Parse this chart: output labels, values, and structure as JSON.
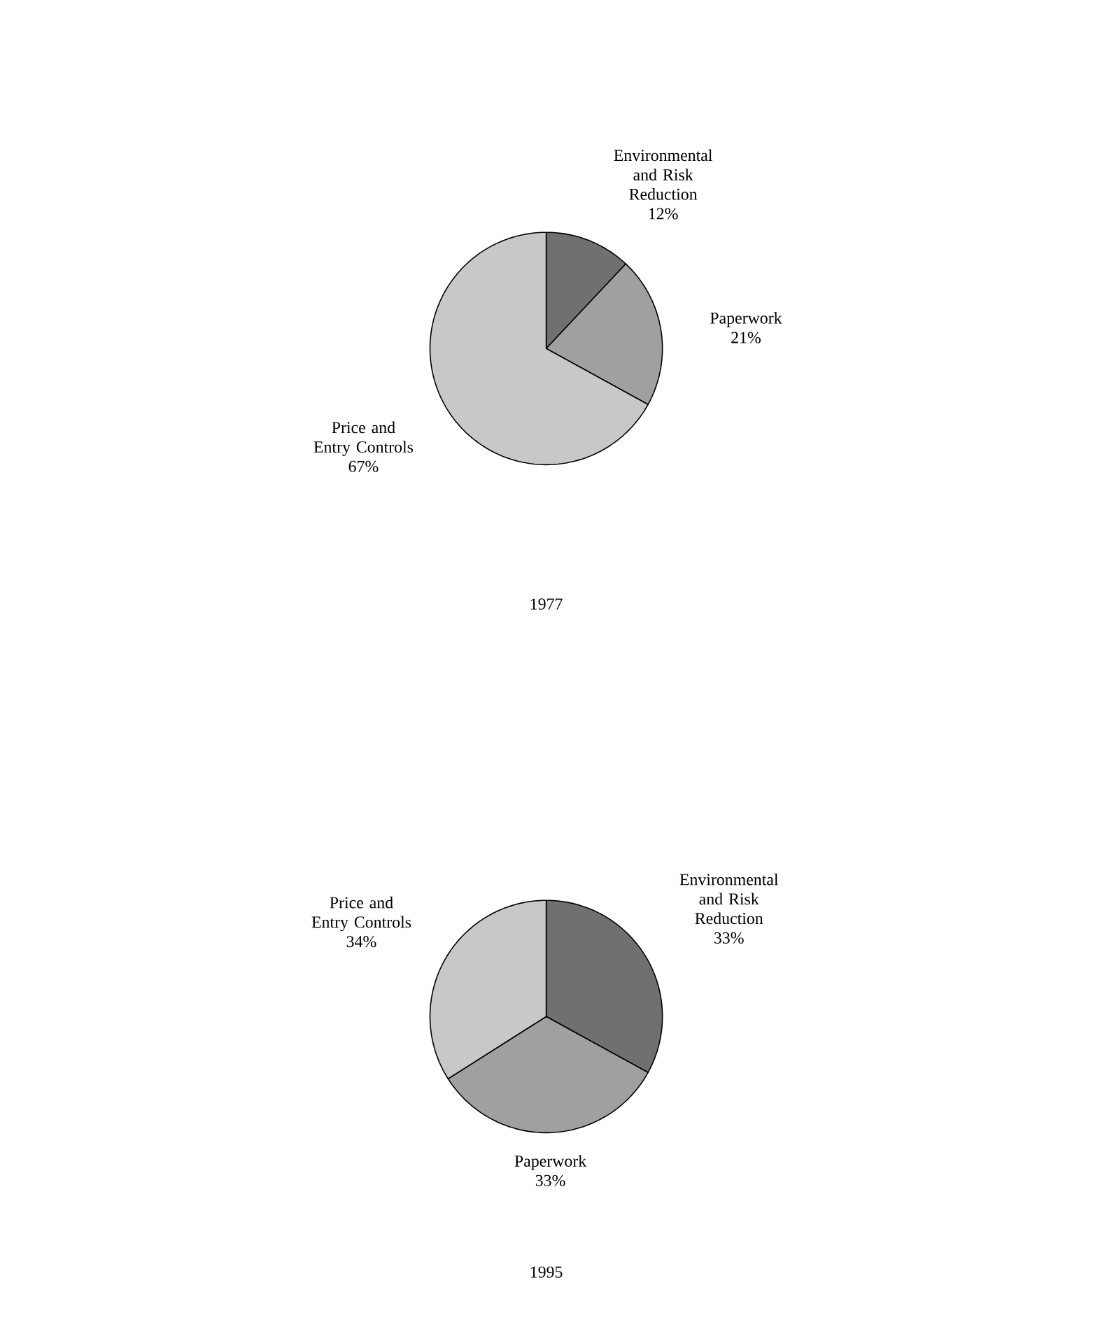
{
  "chart_data": [
    {
      "type": "pie",
      "title": "1977",
      "categories": [
        "Environmental and Risk Reduction",
        "Paperwork",
        "Price and Entry Controls"
      ],
      "values": [
        12,
        21,
        67
      ],
      "value_labels": [
        "12%",
        "21%",
        "67%"
      ],
      "colors": [
        "#707070",
        "#a0a0a0",
        "#c8c8c8"
      ]
    },
    {
      "type": "pie",
      "title": "1995",
      "categories": [
        "Environmental and Risk Reduction",
        "Paperwork",
        "Price and Entry Controls"
      ],
      "values": [
        33,
        33,
        34
      ],
      "value_labels": [
        "33%",
        "33%",
        "34%"
      ],
      "colors": [
        "#707070",
        "#a0a0a0",
        "#c8c8c8"
      ]
    }
  ]
}
